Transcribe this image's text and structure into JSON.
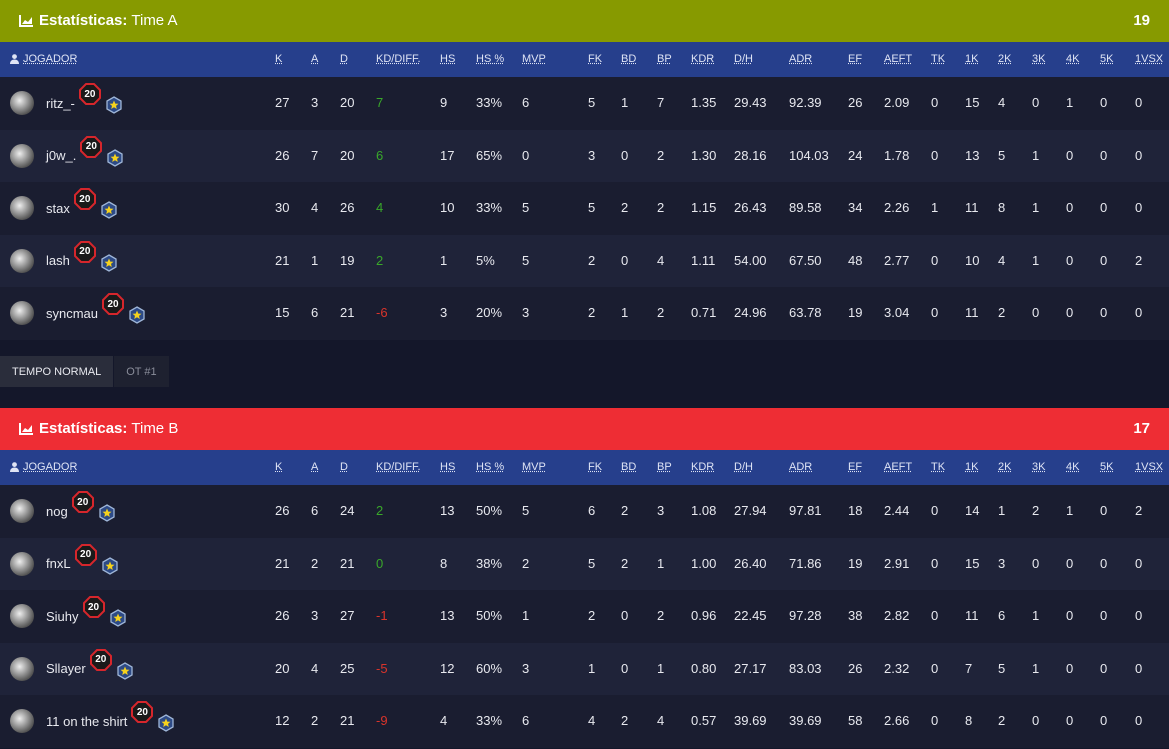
{
  "teams": [
    {
      "title_label": "Estatísticas:",
      "title_name": "Time A",
      "score": "19",
      "players": [
        {
          "name": "ritz_-",
          "level": "20",
          "stats": [
            "27",
            "3",
            "20",
            "7",
            "9",
            "33%",
            "6",
            "5",
            "1",
            "7",
            "1.35",
            "29.43",
            "92.39",
            "26",
            "2.09",
            "0",
            "15",
            "4",
            "0",
            "1",
            "0",
            "0"
          ]
        },
        {
          "name": "j0w_.",
          "level": "20",
          "stats": [
            "26",
            "7",
            "20",
            "6",
            "17",
            "65%",
            "0",
            "3",
            "0",
            "2",
            "1.30",
            "28.16",
            "104.03",
            "24",
            "1.78",
            "0",
            "13",
            "5",
            "1",
            "0",
            "0",
            "0"
          ]
        },
        {
          "name": "stax",
          "level": "20",
          "stats": [
            "30",
            "4",
            "26",
            "4",
            "10",
            "33%",
            "5",
            "5",
            "2",
            "2",
            "1.15",
            "26.43",
            "89.58",
            "34",
            "2.26",
            "1",
            "11",
            "8",
            "1",
            "0",
            "0",
            "0"
          ]
        },
        {
          "name": "lash",
          "level": "20",
          "stats": [
            "21",
            "1",
            "19",
            "2",
            "1",
            "5%",
            "5",
            "2",
            "0",
            "4",
            "1.11",
            "54.00",
            "67.50",
            "48",
            "2.77",
            "0",
            "10",
            "4",
            "1",
            "0",
            "0",
            "2"
          ]
        },
        {
          "name": "syncmau",
          "level": "20",
          "stats": [
            "15",
            "6",
            "21",
            "-6",
            "3",
            "20%",
            "3",
            "2",
            "1",
            "2",
            "0.71",
            "24.96",
            "63.78",
            "19",
            "3.04",
            "0",
            "11",
            "2",
            "0",
            "0",
            "0",
            "0"
          ]
        }
      ]
    },
    {
      "title_label": "Estatísticas:",
      "title_name": "Time B",
      "score": "17",
      "players": [
        {
          "name": "nog",
          "level": "20",
          "stats": [
            "26",
            "6",
            "24",
            "2",
            "13",
            "50%",
            "5",
            "6",
            "2",
            "3",
            "1.08",
            "27.94",
            "97.81",
            "18",
            "2.44",
            "0",
            "14",
            "1",
            "2",
            "1",
            "0",
            "2"
          ]
        },
        {
          "name": "fnxL",
          "level": "20",
          "stats": [
            "21",
            "2",
            "21",
            "0",
            "8",
            "38%",
            "2",
            "5",
            "2",
            "1",
            "1.00",
            "26.40",
            "71.86",
            "19",
            "2.91",
            "0",
            "15",
            "3",
            "0",
            "0",
            "0",
            "0"
          ]
        },
        {
          "name": "Siuhy",
          "level": "20",
          "stats": [
            "26",
            "3",
            "27",
            "-1",
            "13",
            "50%",
            "1",
            "2",
            "0",
            "2",
            "0.96",
            "22.45",
            "97.28",
            "38",
            "2.82",
            "0",
            "11",
            "6",
            "1",
            "0",
            "0",
            "0"
          ]
        },
        {
          "name": "Sllayer",
          "level": "20",
          "stats": [
            "20",
            "4",
            "25",
            "-5",
            "12",
            "60%",
            "3",
            "1",
            "0",
            "1",
            "0.80",
            "27.17",
            "83.03",
            "26",
            "2.32",
            "0",
            "7",
            "5",
            "1",
            "0",
            "0",
            "0"
          ]
        },
        {
          "name": "11 on the shirt",
          "level": "20",
          "stats": [
            "12",
            "2",
            "21",
            "-9",
            "4",
            "33%",
            "6",
            "4",
            "2",
            "4",
            "0.57",
            "39.69",
            "39.69",
            "58",
            "2.66",
            "0",
            "8",
            "2",
            "0",
            "0",
            "0",
            "0"
          ]
        }
      ]
    }
  ],
  "columns": [
    "JOGADOR",
    "K",
    "A",
    "D",
    "KD/DIFF.",
    "HS",
    "HS %",
    "MVP",
    "FK",
    "BD",
    "BP",
    "KDR",
    "D/H",
    "ADR",
    "EF",
    "AEFT",
    "TK",
    "1K",
    "2K",
    "3K",
    "4K",
    "5K",
    "1VSX"
  ],
  "tabs": [
    "TEMPO NORMAL",
    "OT #1"
  ]
}
